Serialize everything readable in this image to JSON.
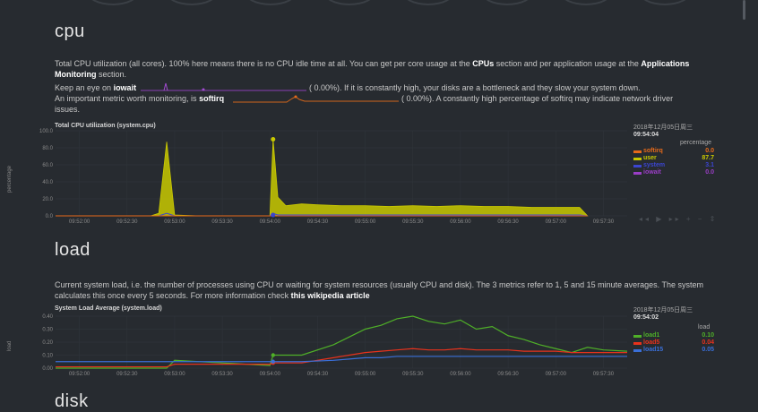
{
  "cpu": {
    "title": "cpu",
    "desc_pre": "Total CPU utilization (all cores). 100% here means there is no CPU idle time at all. You can get per core usage at the ",
    "desc_link1": "CPUs",
    "desc_mid": " section and per application usage at the ",
    "desc_link2": "Applications Monitoring",
    "desc_post": " section.",
    "iowait_pre": "Keep an eye on ",
    "iowait_name": "iowait",
    "iowait_value": "(      0.00%). If it is constantly high, your disks are a bottleneck and they slow your system down.",
    "softirq_pre": "An important metric worth monitoring, is ",
    "softirq_name": "softirq",
    "softirq_value": "(      0.00%). A constantly high percentage of softirq may indicate network driver",
    "softirq_post": "issues.",
    "chart_title": "Total CPU utilization (system.cpu)",
    "ylabel": "percentage",
    "legend": {
      "date": "2018年12月05日周三",
      "time": "09:54:04",
      "units": "percentage",
      "items": [
        {
          "name": "softirq",
          "value": "0.0",
          "color": "#e76a1a"
        },
        {
          "name": "user",
          "value": "87.7",
          "color": "#c9c900"
        },
        {
          "name": "system",
          "value": "3.1",
          "color": "#3b45d0"
        },
        {
          "name": "iowait",
          "value": "0.0",
          "color": "#9a3ec6"
        }
      ]
    },
    "controls": "◂◂ ▶ ▸▸ + − ⇕"
  },
  "load": {
    "title": "load",
    "desc_pre": "Current system load, i.e. the number of processes using CPU or waiting for system resources (usually CPU and disk). The 3 metrics refer to 1, 5 and 15 minute averages. The system calculates this once every 5 seconds. For more information check ",
    "desc_link": "this wikipedia article",
    "chart_title": "System Load Average (system.load)",
    "ylabel": "load",
    "legend": {
      "date": "2018年12月05日周三",
      "time": "09:54:02",
      "units": "load",
      "items": [
        {
          "name": "load1",
          "value": "0.10",
          "color": "#4fb028"
        },
        {
          "name": "load5",
          "value": "0.04",
          "color": "#e8321c"
        },
        {
          "name": "load15",
          "value": "0.05",
          "color": "#3a6fd8"
        }
      ]
    }
  },
  "disk": {
    "title": "disk"
  },
  "chart_data": [
    {
      "type": "area",
      "title": "Total CPU utilization (system.cpu)",
      "ylabel": "percentage",
      "ylim": [
        0,
        100
      ],
      "yticks": [
        "100.0",
        "80.0",
        "60.0",
        "40.0",
        "20.0",
        "0.0"
      ],
      "xticks": [
        "09:52:00",
        "09:52:30",
        "09:53:00",
        "09:53:30",
        "09:54:00",
        "09:54:30",
        "09:55:00",
        "09:55:30",
        "09:56:00",
        "09:56:30",
        "09:57:00",
        "09:57:30"
      ],
      "x": [
        "09:51:45",
        "09:52:00",
        "09:52:15",
        "09:52:30",
        "09:52:45",
        "09:52:50",
        "09:52:55",
        "09:53:00",
        "09:53:15",
        "09:53:30",
        "09:53:45",
        "09:54:00",
        "09:54:02",
        "09:54:05",
        "09:54:10",
        "09:54:20",
        "09:54:30",
        "09:54:45",
        "09:55:00",
        "09:55:15",
        "09:55:30",
        "09:55:45",
        "09:56:00",
        "09:56:15",
        "09:56:30",
        "09:56:45",
        "09:57:00",
        "09:57:15",
        "09:57:20"
      ],
      "series": [
        {
          "name": "user",
          "values": [
            0,
            0,
            0,
            0,
            0,
            3,
            87,
            1,
            0,
            0,
            0,
            0,
            90,
            22,
            12,
            14,
            13,
            12,
            12,
            11,
            12,
            11,
            12,
            11,
            11,
            10,
            10,
            10,
            0
          ]
        },
        {
          "name": "system",
          "values": [
            0,
            0,
            0,
            0,
            0,
            0,
            3,
            0,
            0,
            0,
            0,
            0,
            3,
            1,
            1,
            1,
            1,
            1,
            1,
            1,
            1,
            1,
            1,
            1,
            1,
            1,
            1,
            1,
            0
          ]
        },
        {
          "name": "softirq",
          "values": [
            0,
            0,
            0,
            0,
            0,
            0,
            0,
            0,
            0,
            0,
            0,
            0,
            0,
            0,
            0,
            0,
            0,
            0,
            0,
            0,
            0,
            0,
            0,
            0,
            0,
            0,
            0,
            0,
            0
          ]
        },
        {
          "name": "iowait",
          "values": [
            0,
            0,
            0,
            0,
            0,
            0,
            0,
            0,
            0,
            0,
            0,
            0,
            0,
            0,
            0,
            0,
            0,
            0,
            0,
            0,
            0,
            0,
            0,
            0,
            0,
            0,
            0,
            0,
            0
          ]
        }
      ]
    },
    {
      "type": "line",
      "title": "System Load Average (system.load)",
      "ylabel": "load",
      "ylim": [
        0,
        0.4
      ],
      "yticks": [
        "0.40",
        "0.30",
        "0.20",
        "0.10",
        "0.00"
      ],
      "xticks": [
        "09:52:00",
        "09:52:30",
        "09:53:00",
        "09:53:30",
        "09:54:00",
        "09:54:30",
        "09:55:00",
        "09:55:30",
        "09:56:00",
        "09:56:30",
        "09:57:00",
        "09:57:30"
      ],
      "x": [
        "09:51:45",
        "09:52:00",
        "09:52:30",
        "09:52:55",
        "09:53:00",
        "09:53:30",
        "09:54:00",
        "09:54:02",
        "09:54:20",
        "09:54:40",
        "09:54:50",
        "09:55:00",
        "09:55:10",
        "09:55:20",
        "09:55:30",
        "09:55:40",
        "09:55:50",
        "09:56:00",
        "09:56:10",
        "09:56:20",
        "09:56:30",
        "09:56:40",
        "09:56:50",
        "09:57:00",
        "09:57:10",
        "09:57:20",
        "09:57:30",
        "09:57:45"
      ],
      "series": [
        {
          "name": "load1",
          "values": [
            0.0,
            0.0,
            0.0,
            0.0,
            0.06,
            0.04,
            0.02,
            0.1,
            0.1,
            0.18,
            0.24,
            0.3,
            0.33,
            0.38,
            0.4,
            0.36,
            0.34,
            0.37,
            0.3,
            0.32,
            0.25,
            0.22,
            0.18,
            0.15,
            0.12,
            0.16,
            0.14,
            0.13
          ]
        },
        {
          "name": "load5",
          "values": [
            0.01,
            0.01,
            0.01,
            0.01,
            0.03,
            0.03,
            0.03,
            0.04,
            0.04,
            0.08,
            0.1,
            0.12,
            0.13,
            0.14,
            0.15,
            0.14,
            0.14,
            0.15,
            0.14,
            0.14,
            0.14,
            0.13,
            0.13,
            0.13,
            0.12,
            0.12,
            0.12,
            0.12
          ]
        },
        {
          "name": "load15",
          "values": [
            0.05,
            0.05,
            0.05,
            0.05,
            0.05,
            0.05,
            0.05,
            0.05,
            0.05,
            0.06,
            0.07,
            0.08,
            0.08,
            0.09,
            0.09,
            0.09,
            0.09,
            0.09,
            0.09,
            0.09,
            0.09,
            0.09,
            0.09,
            0.09,
            0.09,
            0.09,
            0.09,
            0.09
          ]
        }
      ]
    }
  ]
}
